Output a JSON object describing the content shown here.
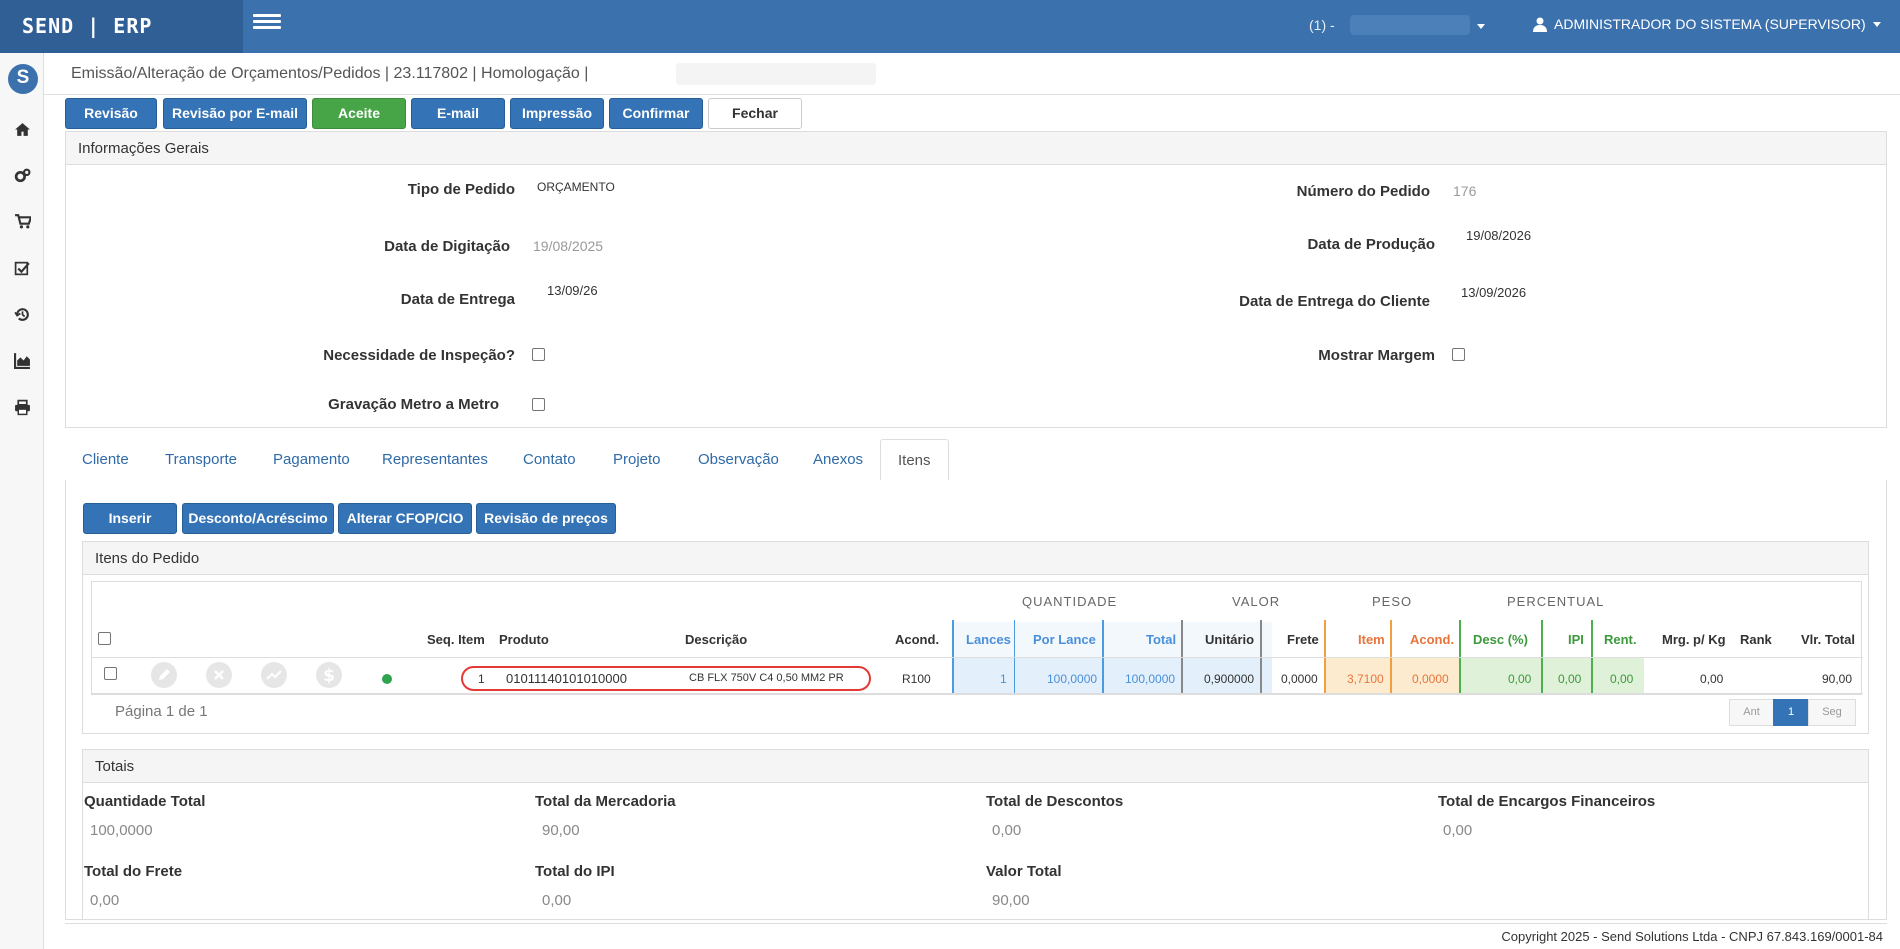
{
  "app": {
    "brand": "SEND | ERP"
  },
  "topbar": {
    "company": "(1) -",
    "user": "ADMINISTRADOR DO SISTEMA (SUPERVISOR)"
  },
  "page": {
    "title": "Emissão/Alteração de Orçamentos/Pedidos | 23.117802 | Homologação |"
  },
  "actions": {
    "revisao": "Revisão",
    "revisao_email": "Revisão por E-mail",
    "aceite": "Aceite",
    "email": "E-mail",
    "impressao": "Impressão",
    "confirmar": "Confirmar",
    "fechar": "Fechar"
  },
  "info": {
    "heading": "Informações Gerais",
    "tipo_label": "Tipo de Pedido",
    "tipo_value": "ORÇAMENTO",
    "numero_label": "Número do Pedido",
    "numero_value": "176",
    "digitacao_label": "Data de Digitação",
    "digitacao_value": "19/08/2025",
    "producao_label": "Data de Produção",
    "producao_value": "19/08/2026",
    "entrega_label": "Data de Entrega",
    "entrega_value": "13/09/26",
    "entrega_cliente_label": "Data de Entrega do Cliente",
    "entrega_cliente_value": "13/09/2026",
    "inspecao_label": "Necessidade de Inspeção?",
    "margem_label": "Mostrar Margem",
    "gravacao_label": "Gravação Metro a Metro"
  },
  "tabs": [
    "Cliente",
    "Transporte",
    "Pagamento",
    "Representantes",
    "Contato",
    "Projeto",
    "Observação",
    "Anexos",
    "Itens"
  ],
  "items_toolbar": {
    "inserir": "Inserir",
    "desconto": "Desconto/Acréscimo",
    "cfop": "Alterar CFOP/CIO",
    "revisao_precos": "Revisão de preços"
  },
  "items": {
    "heading": "Itens do Pedido",
    "groups": {
      "quantidade": "QUANTIDADE",
      "valor": "VALOR",
      "peso": "PESO",
      "percentual": "PERCENTUAL"
    },
    "columns": {
      "seq": "Seq. Item",
      "produto": "Produto",
      "descricao": "Descrição",
      "acond": "Acond.",
      "lances": "Lances",
      "por_lance": "Por Lance",
      "total": "Total",
      "unitario": "Unitário",
      "frete": "Frete",
      "peso_item": "Item",
      "peso_acond": "Acond.",
      "desc": "Desc (%)",
      "ipi": "IPI",
      "rent": "Rent.",
      "mrg": "Mrg. p/ Kg",
      "rank": "Rank",
      "vlr_total": "Vlr. Total"
    },
    "rows": [
      {
        "seq": "1",
        "produto": "01011140101010000",
        "descricao": "CB FLX 750V C4 0,50 MM2 PR",
        "acond": "R100",
        "lances": "1",
        "por_lance": "100,0000",
        "total": "100,0000",
        "unitario": "0,900000",
        "frete": "0,0000",
        "peso_item": "3,7100",
        "peso_acond": "0,0000",
        "desc": "0,00",
        "ipi": "0,00",
        "rent": "0,00",
        "mrg": "0,00",
        "rank": "",
        "vlr_total": "90,00"
      }
    ],
    "pagination": {
      "info": "Página 1 de 1",
      "prev": "Ant",
      "current": "1",
      "next": "Seg"
    }
  },
  "totals": {
    "heading": "Totais",
    "qtd_label": "Quantidade Total",
    "qtd_value": "100,0000",
    "merc_label": "Total da Mercadoria",
    "merc_value": "90,00",
    "desc_label": "Total de Descontos",
    "desc_value": "0,00",
    "enc_label": "Total de Encargos Financeiros",
    "enc_value": "0,00",
    "frete_label": "Total do Frete",
    "frete_value": "0,00",
    "ipi_label": "Total do IPI",
    "ipi_value": "0,00",
    "valor_label": "Valor Total",
    "valor_value": "90,00"
  },
  "footer": {
    "copyright": "Copyright 2025 - Send Solutions Ltda - CNPJ 67.843.169/0001-84"
  },
  "colors": {
    "primary": "#3473b5",
    "success": "#47a447",
    "topbar": "#3b71ac",
    "highlight": "#e53935"
  }
}
